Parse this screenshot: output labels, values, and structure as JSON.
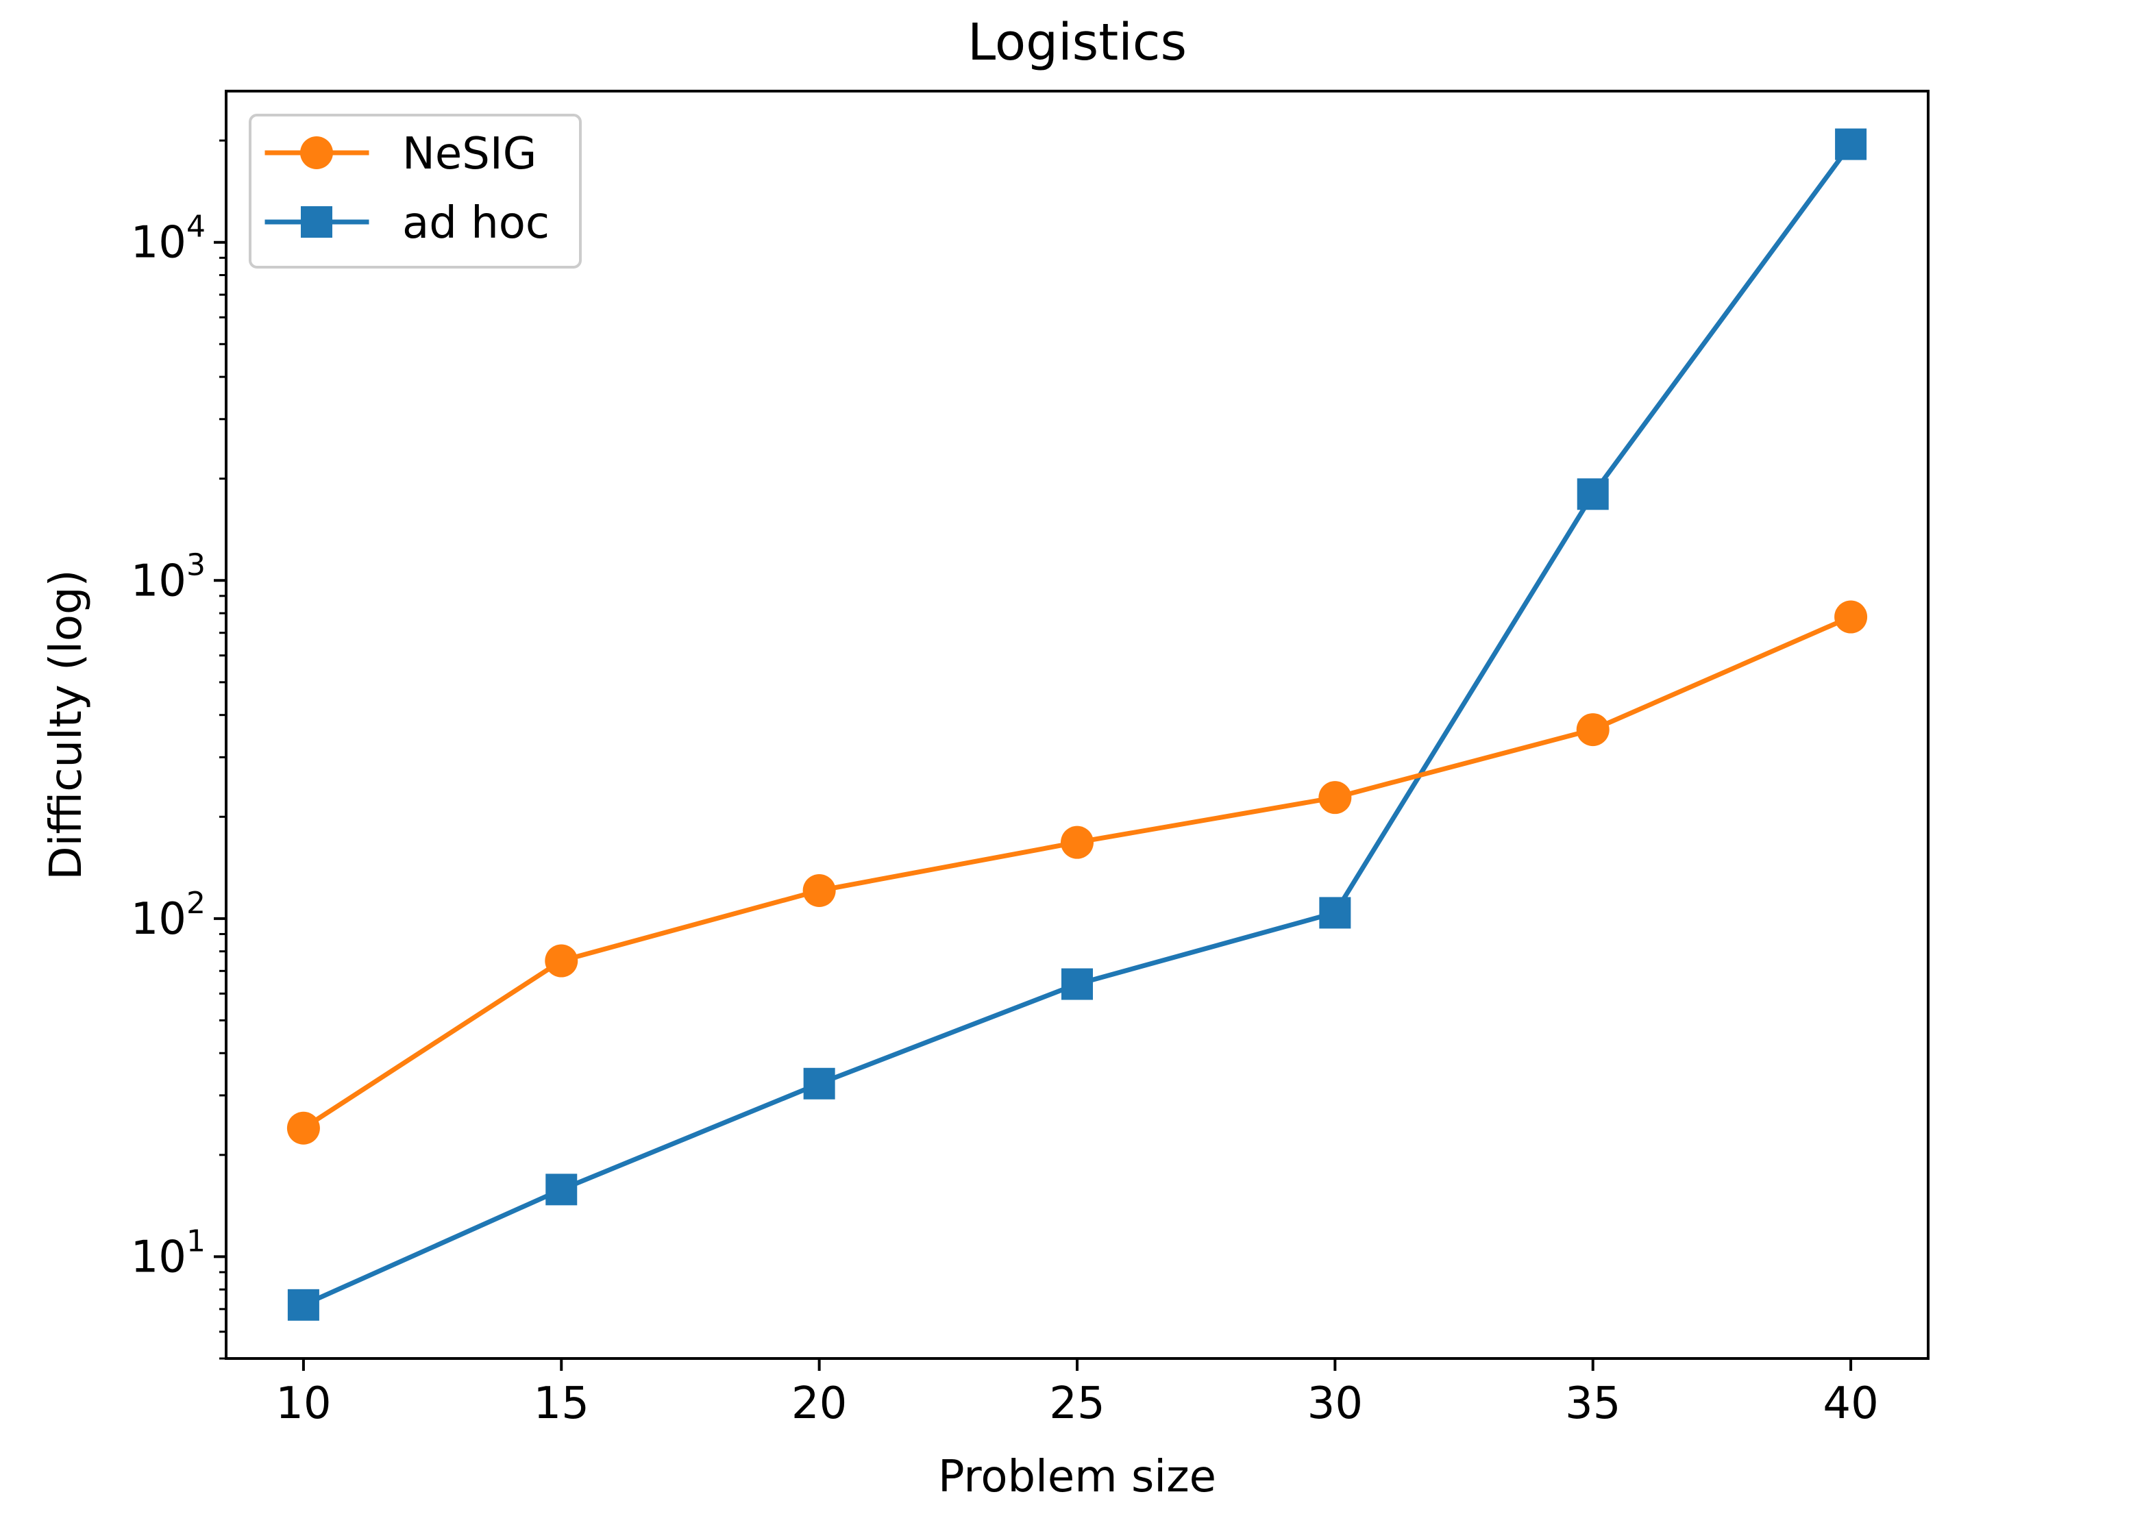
{
  "chart_data": {
    "type": "line",
    "title": "Logistics",
    "xlabel": "Problem size",
    "ylabel": "Difficulty (log)",
    "x": [
      10,
      15,
      20,
      25,
      30,
      35,
      40
    ],
    "xticks": [
      "10",
      "15",
      "20",
      "25",
      "30",
      "35",
      "40"
    ],
    "xlim": [
      8.5,
      41.5
    ],
    "yscale": "log",
    "ylim": [
      5.0,
      28000
    ],
    "yticks": [
      {
        "base": "10",
        "exp": "1",
        "value": 10
      },
      {
        "base": "10",
        "exp": "2",
        "value": 100
      },
      {
        "base": "10",
        "exp": "3",
        "value": 1000
      },
      {
        "base": "10",
        "exp": "4",
        "value": 10000
      }
    ],
    "grid": false,
    "legend_position": "upper left",
    "series": [
      {
        "name": "NeSIG",
        "color": "#ff7f0e",
        "marker": "circle",
        "values": [
          24,
          75,
          121,
          168,
          228,
          362,
          780
        ]
      },
      {
        "name": "ad hoc",
        "color": "#1f77b4",
        "marker": "square",
        "values": [
          7.2,
          15.8,
          32.5,
          64,
          104,
          1800,
          19500
        ]
      }
    ]
  }
}
